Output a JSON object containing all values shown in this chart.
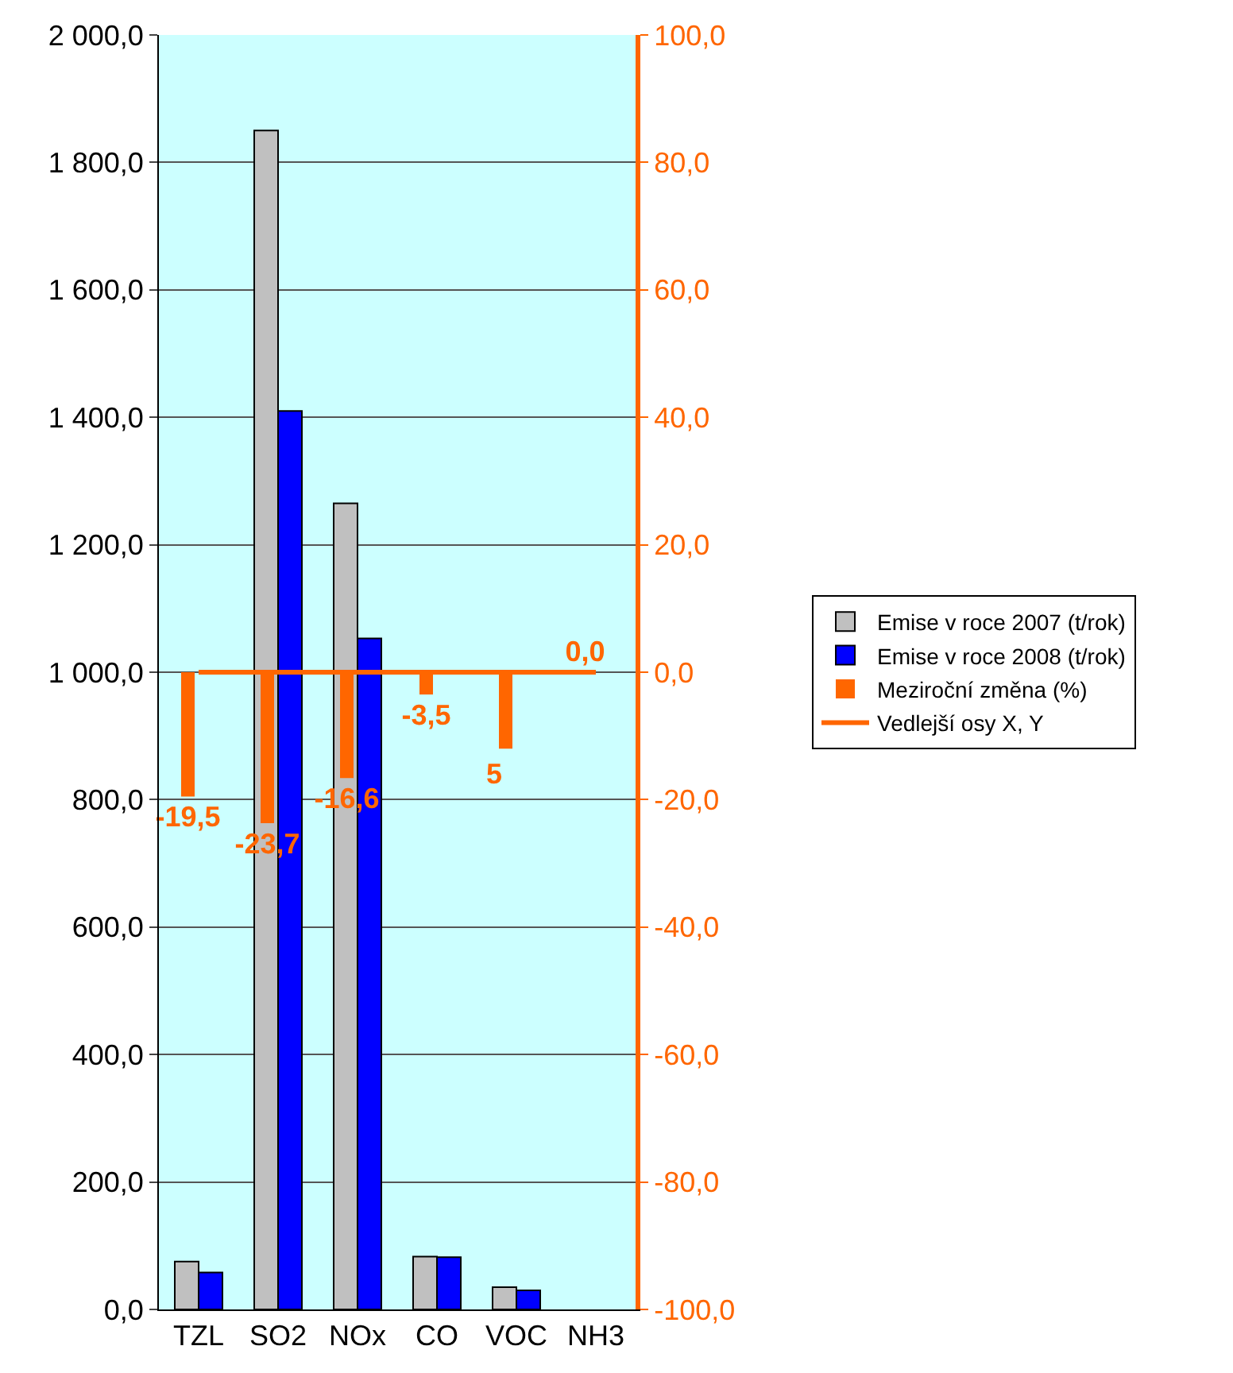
{
  "chart_data": {
    "type": "bar",
    "categories": [
      "TZL",
      "SO2",
      "NOx",
      "CO",
      "VOC",
      "NH3"
    ],
    "series": [
      {
        "name": "Emise v roce 2007 (t/rok)",
        "color": "#c0c0c0",
        "values": [
          75,
          1850,
          1265,
          83,
          35,
          null
        ]
      },
      {
        "name": "Emise v roce 2008 (t/rok)",
        "color": "#0000ff",
        "values": [
          58,
          1410,
          1053,
          82,
          30,
          null
        ]
      },
      {
        "name": "Meziroční změna (%)",
        "color": "#ff6600",
        "axis": "y2",
        "values": [
          -19.5,
          -23.7,
          -16.6,
          -3.5,
          -12,
          0
        ],
        "value_labels": [
          "-19,5",
          "-23,7",
          "-16,6",
          "-3,5",
          null,
          "0,0"
        ]
      },
      {
        "name": "Vedlejší osy X, Y",
        "type": "line",
        "color": "#ff6600",
        "axis": "y2",
        "values": [
          0,
          0,
          0,
          0,
          0,
          0
        ]
      }
    ],
    "ylim": [
      0,
      2000
    ],
    "yticks": [
      {
        "value": 0,
        "label": "0,0"
      },
      {
        "value": 200,
        "label": "200,0"
      },
      {
        "value": 400,
        "label": "400,0"
      },
      {
        "value": 600,
        "label": "600,0"
      },
      {
        "value": 800,
        "label": "800,0"
      },
      {
        "value": 1000,
        "label": "1 000,0"
      },
      {
        "value": 1200,
        "label": "1 200,0"
      },
      {
        "value": 1400,
        "label": "1 400,0"
      },
      {
        "value": 1600,
        "label": "1 600,0"
      },
      {
        "value": 1800,
        "label": "1 800,0"
      },
      {
        "value": 2000,
        "label": "2 000,0"
      }
    ],
    "y2lim": [
      -100,
      100
    ],
    "y2ticks": [
      {
        "value": -100,
        "label": "-100,0"
      },
      {
        "value": -80,
        "label": "-80,0"
      },
      {
        "value": -60,
        "label": "-60,0"
      },
      {
        "value": -40,
        "label": "-40,0"
      },
      {
        "value": -20,
        "label": "-20,0"
      },
      {
        "value": 0,
        "label": "0,0"
      },
      {
        "value": 20,
        "label": "20,0"
      },
      {
        "value": 40,
        "label": "40,0"
      },
      {
        "value": 60,
        "label": "60,0"
      },
      {
        "value": 80,
        "label": "80,0"
      },
      {
        "value": 100,
        "label": "100,0"
      }
    ],
    "annotations": [
      "5"
    ],
    "grid": "y",
    "legend": "right"
  }
}
